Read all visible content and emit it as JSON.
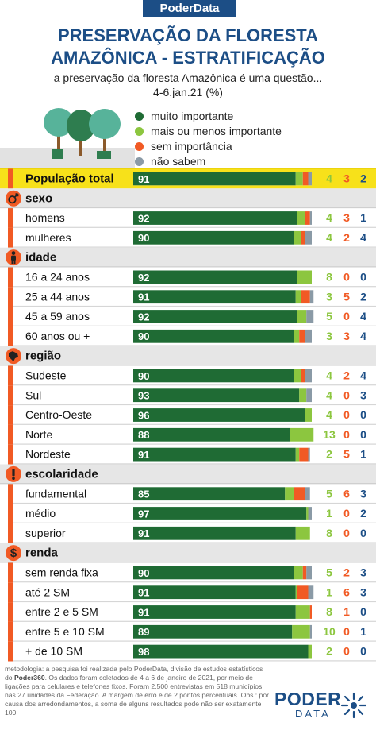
{
  "brand": "PoderData",
  "title_line1": "PRESERVAÇÃO DA FLORESTA",
  "title_line2": "AMAZÔNICA - ESTRATIFICAÇÃO",
  "subtitle_line1": "a preservação da floresta Amazônica é uma questão...",
  "subtitle_line2": "4-6.jan.21 (%)",
  "colors": {
    "muito_importante": "#1f6b34",
    "mais_ou_menos": "#8cc63f",
    "sem_importancia": "#f15a24",
    "nao_sabem": "#8a9aa6",
    "accent_yellow": "#f7e11a",
    "accent_orange": "#f15a24",
    "navy": "#1c4e86"
  },
  "chart_data": {
    "type": "bar",
    "stacked": true,
    "title": "PRESERVAÇÃO DA FLORESTA AMAZÔNICA - ESTRATIFICAÇÃO",
    "series": [
      {
        "name": "muito importante",
        "color": "#1f6b34"
      },
      {
        "name": "mais ou menos importante",
        "color": "#8cc63f"
      },
      {
        "name": "sem importância",
        "color": "#f15a24"
      },
      {
        "name": "não sabem",
        "color": "#8a9aa6"
      }
    ],
    "rows": [
      {
        "kind": "total",
        "label": "População total",
        "values": [
          91,
          4,
          3,
          2
        ]
      },
      {
        "kind": "header",
        "label": "sexo",
        "icon": "gender-icon"
      },
      {
        "kind": "row",
        "label": "homens",
        "values": [
          92,
          4,
          3,
          1
        ]
      },
      {
        "kind": "row",
        "label": "mulheres",
        "values": [
          90,
          4,
          2,
          4
        ]
      },
      {
        "kind": "header",
        "label": "idade",
        "icon": "person-icon"
      },
      {
        "kind": "row",
        "label": "16 a 24 anos",
        "values": [
          92,
          8,
          0,
          0
        ]
      },
      {
        "kind": "row",
        "label": "25 a 44 anos",
        "values": [
          91,
          3,
          5,
          2
        ]
      },
      {
        "kind": "row",
        "label": "45 a 59 anos",
        "values": [
          92,
          5,
          0,
          4
        ]
      },
      {
        "kind": "row",
        "label": "60 anos ou +",
        "values": [
          90,
          3,
          3,
          4
        ]
      },
      {
        "kind": "header",
        "label": "região",
        "icon": "brazil-map-icon"
      },
      {
        "kind": "row",
        "label": "Sudeste",
        "values": [
          90,
          4,
          2,
          4
        ]
      },
      {
        "kind": "row",
        "label": "Sul",
        "values": [
          93,
          4,
          0,
          3
        ]
      },
      {
        "kind": "row",
        "label": "Centro-Oeste",
        "values": [
          96,
          4,
          0,
          0
        ]
      },
      {
        "kind": "row",
        "label": "Norte",
        "values": [
          88,
          13,
          0,
          0
        ]
      },
      {
        "kind": "row",
        "label": "Nordeste",
        "values": [
          91,
          2,
          5,
          1
        ]
      },
      {
        "kind": "header",
        "label": "escolaridade",
        "icon": "exclamation-icon"
      },
      {
        "kind": "row",
        "label": "fundamental",
        "values": [
          85,
          5,
          6,
          3
        ]
      },
      {
        "kind": "row",
        "label": "médio",
        "values": [
          97,
          1,
          0,
          2
        ]
      },
      {
        "kind": "row",
        "label": "superior",
        "values": [
          91,
          8,
          0,
          0
        ]
      },
      {
        "kind": "header",
        "label": "renda",
        "icon": "dollar-icon"
      },
      {
        "kind": "row",
        "label": "sem renda fixa",
        "values": [
          90,
          5,
          2,
          3
        ]
      },
      {
        "kind": "row",
        "label": "até 2 SM",
        "values": [
          91,
          1,
          6,
          3
        ]
      },
      {
        "kind": "row",
        "label": "entre 2 e 5 SM",
        "values": [
          91,
          8,
          1,
          0
        ]
      },
      {
        "kind": "row",
        "label": "entre 5 e 10 SM",
        "values": [
          89,
          10,
          0,
          1
        ]
      },
      {
        "kind": "row",
        "label": "+ de 10 SM",
        "values": [
          98,
          2,
          0,
          0
        ]
      }
    ]
  },
  "footnote": {
    "pre": "metodologia: a pesquisa foi realizada pelo PoderData, divisão de estudos estatísticos do ",
    "bold": "Poder360",
    "post": ". Os dados foram coletados de 4 a 6 de janeiro de 2021, por meio de ligações para celulares e telefones fixos. Foram 2.500 entrevistas em 518 municípios nas 27 unidades da Federação. A margem de erro é de 2 pontos percentuais. Obs.: por causa dos arredondamentos, a soma de alguns resultados pode não ser exatamente 100."
  },
  "logo": {
    "line1": "PODER",
    "line2": "DATA"
  }
}
